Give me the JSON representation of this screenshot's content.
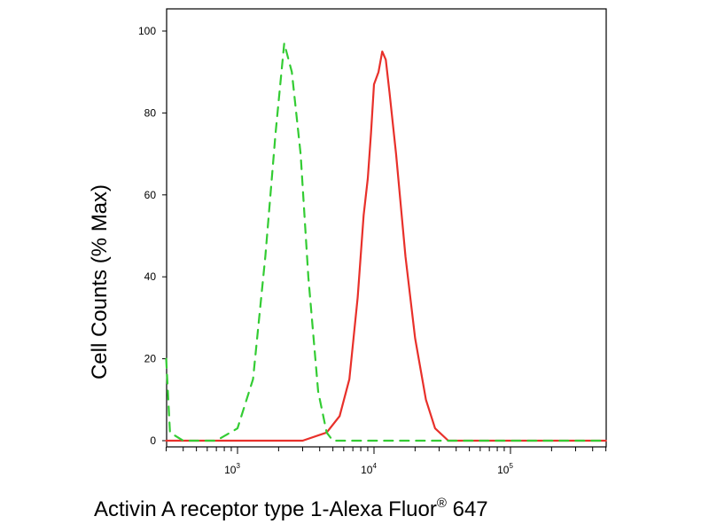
{
  "chart_data": {
    "type": "line",
    "ylabel": "Cell Counts (% Max)",
    "xlabel": "Activin A receptor type 1-Alexa Fluor",
    "xlabel_mark": "®",
    "xlabel_suffix": " 647",
    "x_scale": "log",
    "xlim": [
      300,
      500000
    ],
    "ylim": [
      0,
      105
    ],
    "y_ticks": [
      0,
      20,
      40,
      60,
      80,
      100
    ],
    "x_ticks": [
      {
        "value": 1000,
        "base": "10",
        "exp": "3"
      },
      {
        "value": 10000,
        "base": "10",
        "exp": "4"
      },
      {
        "value": 100000,
        "base": "10",
        "exp": "5"
      }
    ],
    "grid": false,
    "legend": "none",
    "series": [
      {
        "color": "#e8302a",
        "dash": "solid",
        "points": [
          [
            300,
            0
          ],
          [
            3000,
            0
          ],
          [
            4500,
            2
          ],
          [
            5600,
            6
          ],
          [
            6600,
            15
          ],
          [
            7600,
            35
          ],
          [
            8400,
            55
          ],
          [
            9000,
            64
          ],
          [
            9500,
            75
          ],
          [
            10000,
            87
          ],
          [
            10800,
            90
          ],
          [
            11500,
            95
          ],
          [
            12200,
            93
          ],
          [
            13000,
            85
          ],
          [
            14500,
            70
          ],
          [
            17000,
            45
          ],
          [
            20000,
            25
          ],
          [
            24000,
            10
          ],
          [
            28000,
            3
          ],
          [
            35000,
            0
          ],
          [
            500000,
            0
          ]
        ]
      },
      {
        "color": "#33cc33",
        "dash": "dashed",
        "points": [
          [
            300,
            20
          ],
          [
            320,
            2
          ],
          [
            400,
            0
          ],
          [
            700,
            0
          ],
          [
            1000,
            3
          ],
          [
            1300,
            15
          ],
          [
            1600,
            45
          ],
          [
            1900,
            75
          ],
          [
            2200,
            97
          ],
          [
            2500,
            90
          ],
          [
            2900,
            70
          ],
          [
            3300,
            40
          ],
          [
            3900,
            12
          ],
          [
            4500,
            2
          ],
          [
            5000,
            0
          ],
          [
            500000,
            0
          ]
        ]
      }
    ]
  }
}
